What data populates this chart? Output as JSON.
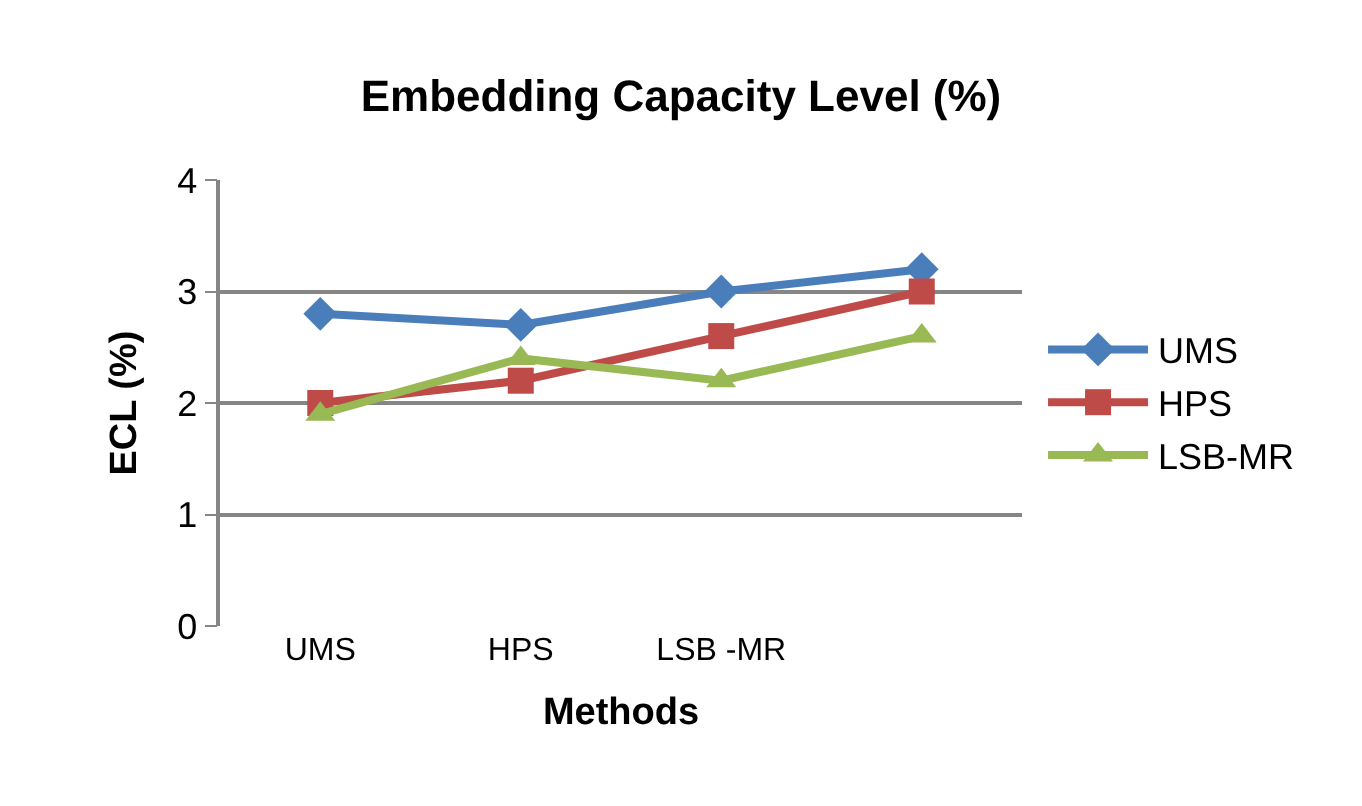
{
  "chart_data": {
    "type": "line",
    "title": "Embedding Capacity Level (%)",
    "xlabel": "Methods",
    "ylabel": "ECL (%)",
    "categories": [
      "UMS",
      "HPS",
      "LSB -MR",
      null
    ],
    "series": [
      {
        "name": "UMS",
        "color": "#4a7ebb",
        "marker": "diamond",
        "values": [
          2.8,
          2.7,
          3.0,
          3.2
        ]
      },
      {
        "name": "HPS",
        "color": "#be4b48",
        "marker": "square",
        "values": [
          2.0,
          2.2,
          2.6,
          3.0
        ]
      },
      {
        "name": "LSB-MR",
        "color": "#98b954",
        "marker": "triangle",
        "values": [
          1.9,
          2.4,
          2.2,
          2.6
        ]
      }
    ],
    "ylim": [
      0,
      4
    ],
    "yticks": [
      0,
      1,
      2,
      3,
      4
    ],
    "grid": "y",
    "legend": "right"
  }
}
